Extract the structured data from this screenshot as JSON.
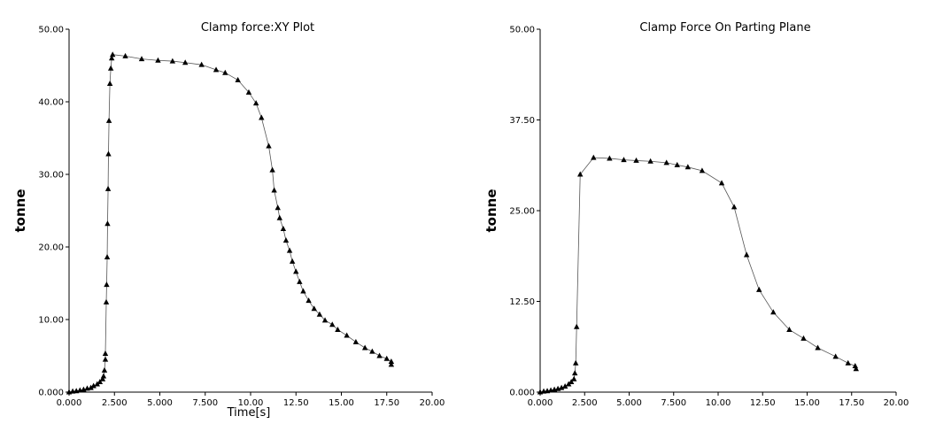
{
  "chart_data": [
    {
      "type": "line",
      "title": "Clamp force:XY Plot",
      "xlabel": "Time[s]",
      "ylabel": "tonne",
      "color": "#000000",
      "marker": "triangle",
      "x": [
        0,
        0.2,
        0.4,
        0.6,
        0.8,
        1.0,
        1.2,
        1.35,
        1.55,
        1.7,
        1.85,
        1.9,
        1.95,
        2.0,
        2.0,
        2.05,
        2.07,
        2.1,
        2.12,
        2.15,
        2.17,
        2.2,
        2.25,
        2.3,
        2.35,
        2.4,
        3.1,
        4.0,
        4.9,
        5.7,
        6.4,
        7.3,
        8.1,
        8.6,
        9.3,
        9.9,
        10.3,
        10.6,
        11.0,
        11.2,
        11.3,
        11.5,
        11.6,
        11.8,
        11.95,
        12.15,
        12.3,
        12.5,
        12.7,
        12.9,
        13.2,
        13.5,
        13.8,
        14.1,
        14.5,
        14.8,
        15.3,
        15.8,
        16.3,
        16.7,
        17.1,
        17.5,
        17.75,
        17.75
      ],
      "values": [
        0,
        0.1,
        0.15,
        0.25,
        0.35,
        0.5,
        0.6,
        0.85,
        1.1,
        1.4,
        1.8,
        2.2,
        3.0,
        4.5,
        5.3,
        12.4,
        14.8,
        18.6,
        23.2,
        28.0,
        32.8,
        37.4,
        42.5,
        44.6,
        46.0,
        46.5,
        46.3,
        45.9,
        45.7,
        45.6,
        45.4,
        45.1,
        44.4,
        44.0,
        43.0,
        41.3,
        39.8,
        37.8,
        33.9,
        30.6,
        27.8,
        25.4,
        24.0,
        22.5,
        20.9,
        19.5,
        18.0,
        16.6,
        15.2,
        13.9,
        12.6,
        11.5,
        10.7,
        9.9,
        9.3,
        8.6,
        7.8,
        6.9,
        6.1,
        5.6,
        5.0,
        4.6,
        4.2,
        3.8
      ],
      "xlim": [
        0,
        20
      ],
      "ylim": [
        0,
        50
      ],
      "xticks": [
        {
          "value": 0,
          "label": "0.000"
        },
        {
          "value": 2.5,
          "label": "2.500"
        },
        {
          "value": 5,
          "label": "5.000"
        },
        {
          "value": 7.5,
          "label": "7.500"
        },
        {
          "value": 10,
          "label": "10.00"
        },
        {
          "value": 12.5,
          "label": "12.50"
        },
        {
          "value": 15,
          "label": "15.00"
        },
        {
          "value": 17.5,
          "label": "17.50"
        },
        {
          "value": 20,
          "label": "20.00"
        }
      ],
      "yticks": [
        {
          "value": 0,
          "label": "0.000"
        },
        {
          "value": 10,
          "label": "10.00"
        },
        {
          "value": 20,
          "label": "20.00"
        },
        {
          "value": 30,
          "label": "30.00"
        },
        {
          "value": 40,
          "label": "40.00"
        },
        {
          "value": 50,
          "label": "50.00"
        }
      ]
    },
    {
      "type": "line",
      "title": "Clamp Force On Parting Plane",
      "ylabel": "tonne",
      "color": "#000000",
      "marker": "triangle",
      "x": [
        0,
        0.2,
        0.4,
        0.6,
        0.8,
        1.0,
        1.2,
        1.4,
        1.6,
        1.75,
        1.9,
        1.95,
        2.0,
        2.05,
        2.25,
        3.0,
        3.9,
        4.7,
        5.4,
        6.2,
        7.1,
        7.7,
        8.3,
        9.1,
        10.2,
        10.9,
        11.6,
        12.3,
        13.1,
        14.0,
        14.8,
        15.6,
        16.6,
        17.3,
        17.7,
        17.75
      ],
      "values": [
        0,
        0.1,
        0.15,
        0.25,
        0.35,
        0.45,
        0.6,
        0.8,
        1.1,
        1.4,
        1.8,
        2.6,
        4.0,
        9.0,
        30.0,
        32.3,
        32.2,
        32.0,
        31.9,
        31.8,
        31.6,
        31.3,
        31.0,
        30.5,
        28.8,
        25.5,
        18.9,
        14.1,
        11.0,
        8.6,
        7.4,
        6.1,
        4.9,
        4.0,
        3.6,
        3.2
      ],
      "xlim": [
        0,
        20
      ],
      "ylim": [
        0,
        50
      ],
      "xticks": [
        {
          "value": 0,
          "label": "0.000"
        },
        {
          "value": 2.5,
          "label": "2.500"
        },
        {
          "value": 5,
          "label": "5.000"
        },
        {
          "value": 7.5,
          "label": "7.500"
        },
        {
          "value": 10,
          "label": "10.00"
        },
        {
          "value": 12.5,
          "label": "12.50"
        },
        {
          "value": 15,
          "label": "15.00"
        },
        {
          "value": 17.5,
          "label": "17.50"
        },
        {
          "value": 20,
          "label": "20.00"
        }
      ],
      "yticks": [
        {
          "value": 0,
          "label": "0.000"
        },
        {
          "value": 12.5,
          "label": "12.50"
        },
        {
          "value": 25,
          "label": "25.00"
        },
        {
          "value": 37.5,
          "label": "37.50"
        },
        {
          "value": 50,
          "label": "50.00"
        }
      ]
    }
  ]
}
